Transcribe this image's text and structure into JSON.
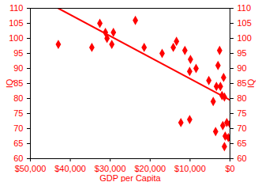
{
  "chart_data": {
    "type": "scatter",
    "x_label": "GDP per Capita",
    "y_label": "IQ",
    "y2_label": "IQ",
    "xlim": [
      50000,
      0
    ],
    "xticks": [
      {
        "value": 50000,
        "label": "$50,000"
      },
      {
        "value": 40000,
        "label": "$40,000"
      },
      {
        "value": 30000,
        "label": "$30,000"
      },
      {
        "value": 20000,
        "label": "$20,000"
      },
      {
        "value": 10000,
        "label": "$10,000"
      },
      {
        "value": 0,
        "label": "$0"
      }
    ],
    "ylim": [
      60,
      110
    ],
    "yticks": [
      60,
      65,
      70,
      75,
      80,
      85,
      90,
      95,
      100,
      105,
      110
    ],
    "y2lim": [
      60,
      110
    ],
    "y2ticks": [
      60,
      65,
      70,
      75,
      80,
      85,
      90,
      95,
      100,
      105,
      110
    ],
    "grid": false,
    "series": [
      {
        "type": "scatter",
        "marker": "diamond",
        "color": "#ff0000",
        "x": [
          43000,
          34600,
          32600,
          31200,
          30800,
          29200,
          29600,
          23700,
          21500,
          17000,
          14200,
          13400,
          12300,
          11300,
          10100,
          9900,
          10100,
          8500,
          5300,
          4200,
          3600,
          3400,
          2600,
          3000,
          2400,
          2000,
          1600,
          1400,
          1800,
          800,
          1200,
          1400,
          400,
          0
        ],
        "values": [
          98,
          97,
          105,
          102,
          100,
          102,
          98,
          106,
          97,
          95,
          97,
          99,
          72,
          96,
          89,
          93,
          73,
          90,
          86,
          79,
          69,
          84,
          96,
          91,
          84,
          81,
          87,
          80.5,
          71,
          72,
          67.5,
          64,
          67,
          71.5
        ]
      },
      {
        "type": "line",
        "line_style": "solid",
        "color": "#ff0000",
        "x": [
          43000,
          0
        ],
        "values": [
          110,
          79.5
        ]
      }
    ]
  }
}
